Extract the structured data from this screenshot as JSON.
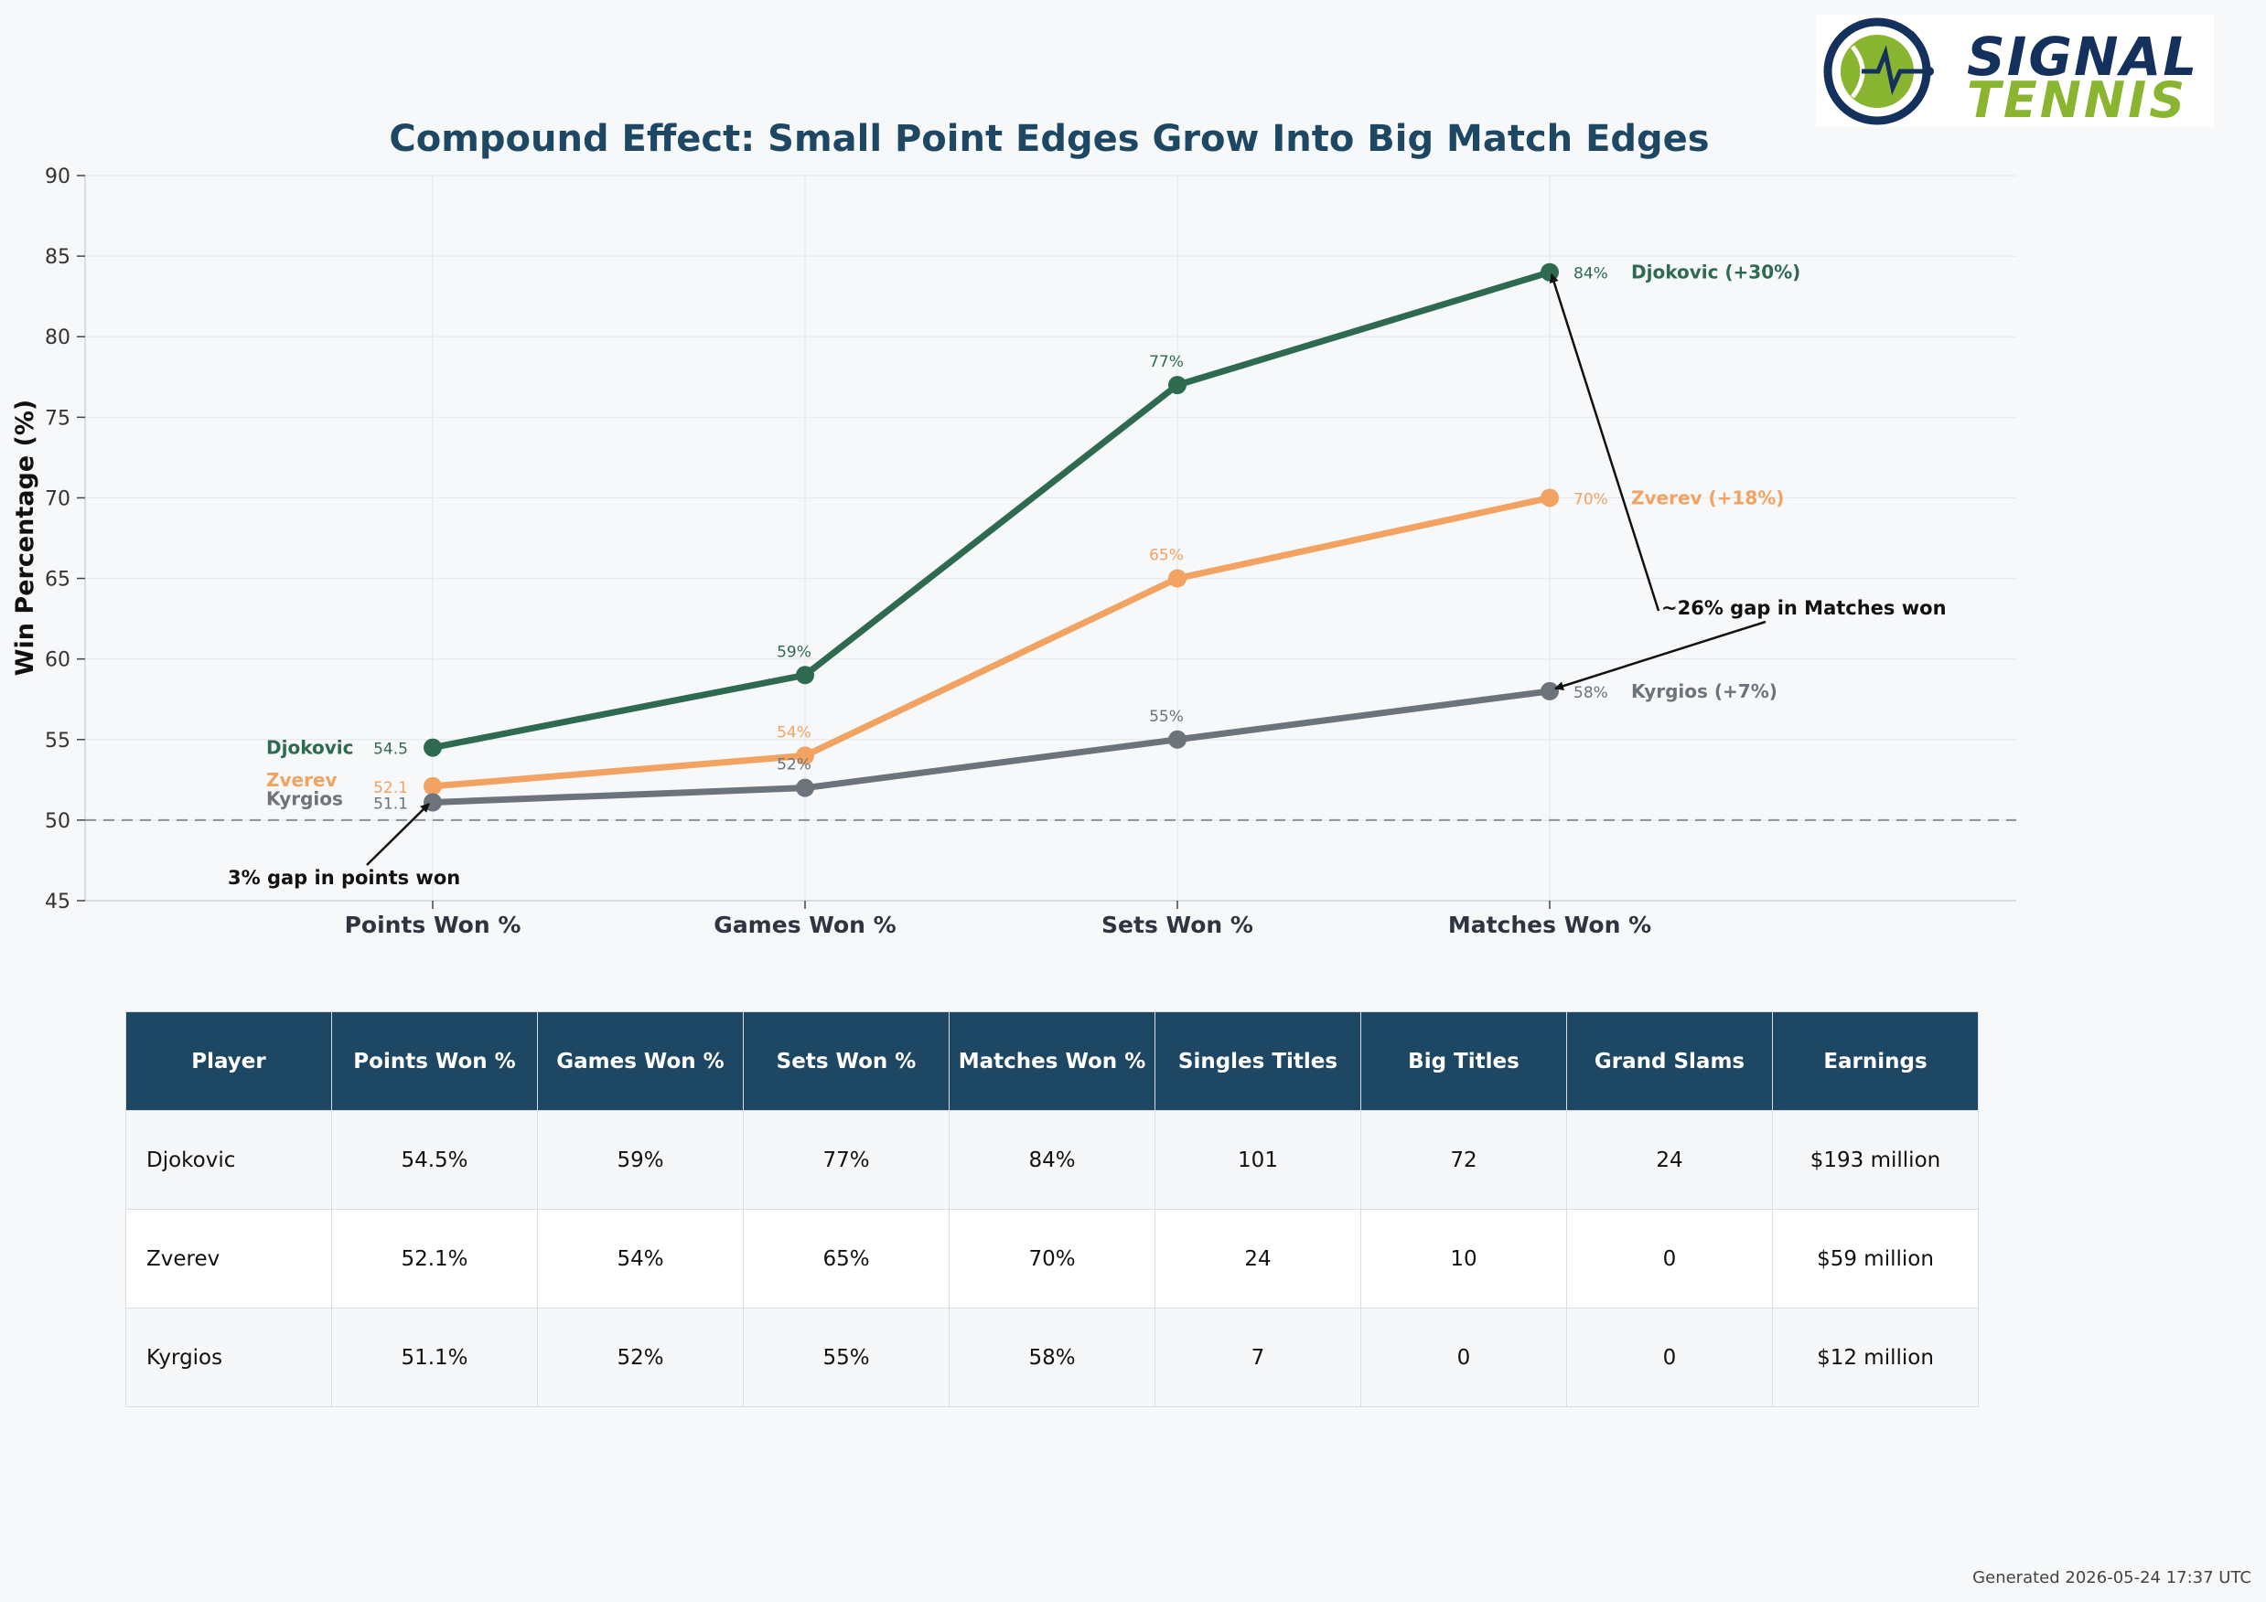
{
  "brand": {
    "logo_word1": "SIGNAL",
    "logo_word2": "TENNIS",
    "colors": {
      "navy": "#14305c",
      "green": "#8ab530"
    }
  },
  "chart_data": {
    "type": "line",
    "title": "Compound Effect: Small Point Edges Grow Into Big Match Edges",
    "xlabel": "",
    "ylabel": "Win Percentage (%)",
    "categories": [
      "Points Won %",
      "Games Won %",
      "Sets Won %",
      "Matches Won %"
    ],
    "ylim": [
      45,
      90
    ],
    "yticks": [
      45,
      50,
      55,
      60,
      65,
      70,
      75,
      80,
      85,
      90
    ],
    "grid": true,
    "reference_line": 50,
    "series": [
      {
        "name": "Djokovic",
        "color": "#2e6a4f",
        "values": [
          54.5,
          59,
          77,
          84
        ],
        "value_labels": [
          "54.5",
          "59%",
          "77%",
          "84%"
        ],
        "end_label": "Djokovic (+30%)"
      },
      {
        "name": "Zverev",
        "color": "#f2a261",
        "values": [
          52.1,
          54,
          65,
          70
        ],
        "value_labels": [
          "52.1",
          "54%",
          "65%",
          "70%"
        ],
        "end_label": "Zverev (+18%)"
      },
      {
        "name": "Kyrgios",
        "color": "#6c737b",
        "values": [
          51.1,
          52,
          55,
          58
        ],
        "value_labels": [
          "51.1",
          "52%",
          "55%",
          "58%"
        ],
        "end_label": "Kyrgios (+7%)"
      }
    ],
    "annotations": [
      {
        "text": "3% gap in points won"
      },
      {
        "text": "~26% gap in Matches won"
      }
    ]
  },
  "table": {
    "headers": [
      "Player",
      "Points Won %",
      "Games Won %",
      "Sets Won %",
      "Matches Won %",
      "Singles Titles",
      "Big Titles",
      "Grand Slams",
      "Earnings"
    ],
    "rows": [
      [
        "Djokovic",
        "54.5%",
        "59%",
        "77%",
        "84%",
        "101",
        "72",
        "24",
        "$193 million"
      ],
      [
        "Zverev",
        "52.1%",
        "54%",
        "65%",
        "70%",
        "24",
        "10",
        "0",
        "$59 million"
      ],
      [
        "Kyrgios",
        "51.1%",
        "52%",
        "55%",
        "58%",
        "7",
        "0",
        "0",
        "$12 million"
      ]
    ]
  },
  "footer": {
    "generated": "Generated 2026-05-24 17:37 UTC"
  }
}
